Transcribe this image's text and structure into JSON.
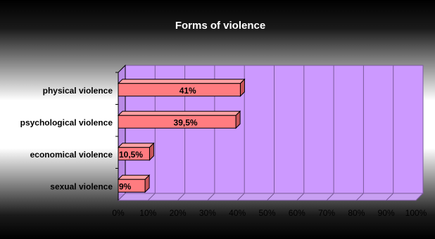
{
  "chart_data": {
    "type": "bar",
    "orientation": "horizontal",
    "title": "Forms of violence",
    "categories": [
      "physical violence",
      "psychological violence",
      "economical violence",
      "sexual violence"
    ],
    "values": [
      41,
      39.5,
      10.5,
      9
    ],
    "data_labels": [
      "41%",
      "39,5%",
      "10,5%",
      "9%"
    ],
    "x_ticks": [
      "0%",
      "10%",
      "20%",
      "30%",
      "40%",
      "50%",
      "60%",
      "70%",
      "80%",
      "90%",
      "100%"
    ],
    "xlim": [
      0,
      100
    ],
    "grid": true,
    "legend": "none",
    "style": "3d",
    "colors": {
      "bar": "#ff7c80",
      "bar_edge": "#000000",
      "plot_wall": "#cc99ff",
      "wall_side": "#b98ae6",
      "floor": "#c8a0f2",
      "background_dark": "#000000",
      "background_light": "#ffffff",
      "title_color": "#ffffff"
    }
  }
}
